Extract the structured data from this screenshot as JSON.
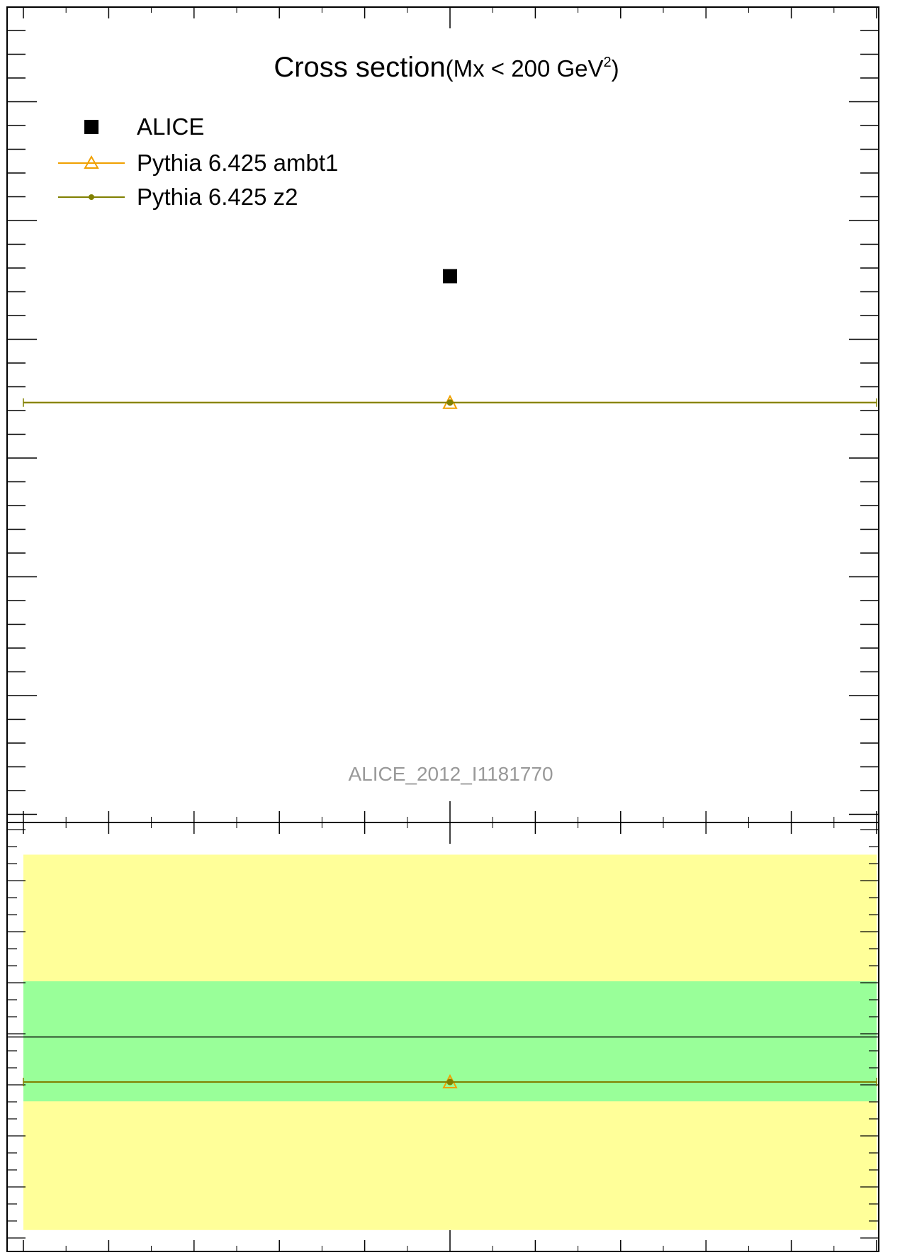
{
  "chart_data": [
    {
      "type": "scatter",
      "panel": "main",
      "title": "Cross section",
      "title_suffix": "(Mx < 200 GeV",
      "title_superscript": "2",
      "title_close": ")",
      "watermark": "ALICE_2012_I1181770",
      "x": [
        0.5
      ],
      "xlim": [
        0,
        1
      ],
      "series": [
        {
          "name": "ALICE",
          "marker": "square",
          "color": "#000000",
          "values": [
            0.67
          ]
        },
        {
          "name": "Pythia 6.425 ambt1",
          "marker": "triangle-open",
          "color": "#f0a000",
          "values": [
            0.515
          ]
        },
        {
          "name": "Pythia 6.425 z2",
          "marker": "dot",
          "color": "#808000",
          "values": [
            0.515
          ]
        }
      ],
      "legend": {
        "placement": "top-left",
        "entries": [
          "ALICE",
          "Pythia 6.425 ambt1",
          "Pythia 6.425 z2"
        ]
      },
      "grid": false
    },
    {
      "type": "line",
      "panel": "ratio",
      "x": [
        0.5
      ],
      "xlim": [
        0,
        1
      ],
      "reference_line": 1.0,
      "bands": {
        "yellow": {
          "low": 0.1,
          "high": 1.85,
          "color": "#ffff99"
        },
        "green": {
          "low": 0.7,
          "high": 1.26,
          "color": "#99ff99"
        }
      },
      "series": [
        {
          "name": "Pythia 6.425 ambt1",
          "values": [
            0.79
          ],
          "color": "#f0a000"
        },
        {
          "name": "Pythia 6.425 z2",
          "values": [
            0.79
          ],
          "color": "#808000"
        }
      ],
      "grid": false
    }
  ]
}
